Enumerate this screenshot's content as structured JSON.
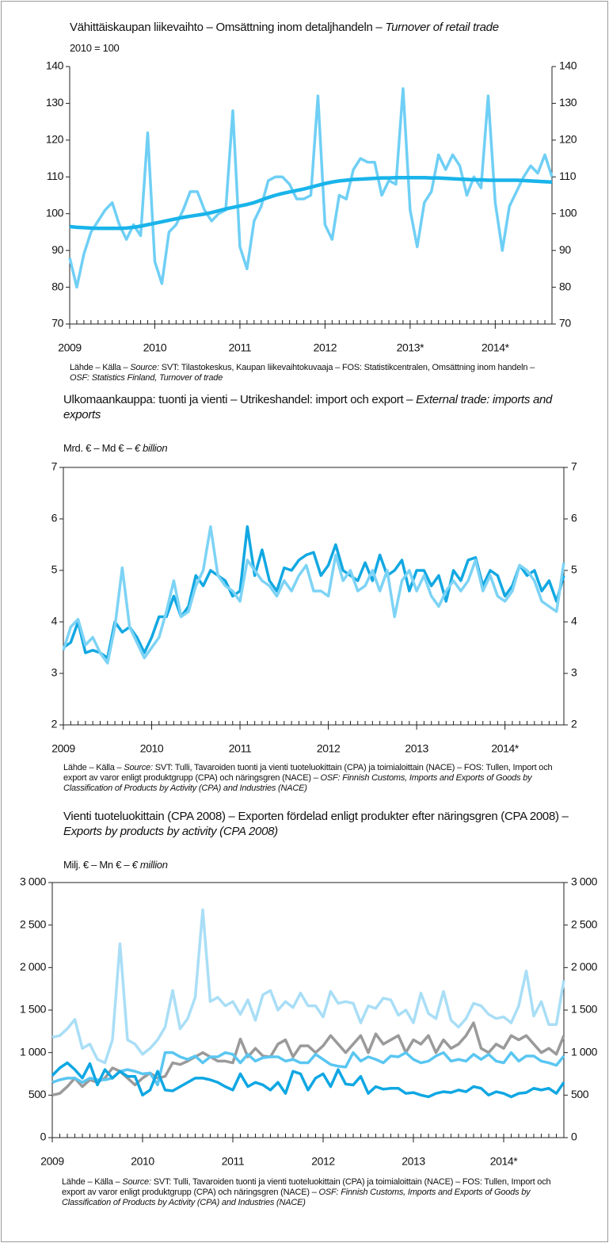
{
  "chart_data": [
    {
      "type": "line",
      "title": "Vähittäiskaupan liikevaihto – Omsättning inom detaljhandeln –",
      "title_en": "Turnover of retail trade",
      "unit": "2010 = 100",
      "source": {
        "prefix": "Lähde – Källa –",
        "label": "Source:",
        "text": "SVT: Tilastokeskus, Kaupan liikevaihtokuvaaja – FOS: Statistikcentralen, Omsättning inom handeln –",
        "osf": "OSF: Statistics Finland, Turnover of trade"
      },
      "categories": [
        "2009",
        null,
        null,
        null,
        null,
        null,
        null,
        null,
        null,
        null,
        null,
        null,
        "2010",
        null,
        null,
        null,
        null,
        null,
        null,
        null,
        null,
        null,
        null,
        null,
        "2011",
        null,
        null,
        null,
        null,
        null,
        null,
        null,
        null,
        null,
        null,
        null,
        "2012",
        null,
        null,
        null,
        null,
        null,
        null,
        null,
        null,
        null,
        null,
        null,
        "2013*",
        null,
        null,
        null,
        null,
        null,
        null,
        null,
        null,
        null,
        null,
        null,
        "2014*",
        null,
        null,
        null,
        null,
        null,
        null,
        null,
        null
      ],
      "series": [
        {
          "color": "#6fcff5",
          "width": 3.5,
          "values": [
            88,
            80,
            89,
            95,
            98,
            101,
            103,
            97,
            93,
            97,
            94,
            122,
            87,
            81,
            95,
            97,
            101,
            106,
            106,
            101,
            98,
            100,
            101,
            128,
            91,
            85,
            98,
            102,
            109,
            110,
            110,
            108,
            104,
            104,
            105,
            132,
            97,
            93,
            105,
            104,
            112,
            115,
            114,
            114,
            105,
            109,
            108,
            134,
            101,
            91,
            103,
            106,
            116,
            112,
            116,
            113,
            105,
            110,
            107,
            132,
            103,
            90,
            102,
            106,
            110,
            113,
            111,
            116,
            110
          ]
        },
        {
          "color": "#19b4ea",
          "width": 4.5,
          "values": [
            96.5,
            96.3,
            96.2,
            96.1,
            96.0,
            96.0,
            96.0,
            96.0,
            96.1,
            96.3,
            96.6,
            97.0,
            97.4,
            97.8,
            98.2,
            98.6,
            99.0,
            99.3,
            99.6,
            99.9,
            100.3,
            100.8,
            101.3,
            101.7,
            102.1,
            102.5,
            103.0,
            103.7,
            104.4,
            105.0,
            105.5,
            105.9,
            106.3,
            106.7,
            107.2,
            107.7,
            108.2,
            108.6,
            108.9,
            109.1,
            109.3,
            109.4,
            109.5,
            109.6,
            109.7,
            109.7,
            109.8,
            109.8,
            109.8,
            109.8,
            109.8,
            109.7,
            109.7,
            109.6,
            109.5,
            109.4,
            109.3,
            109.2,
            109.2,
            109.1,
            109.1,
            109.1,
            109.1,
            109.1,
            109.0,
            108.9,
            108.8,
            108.7,
            108.6
          ]
        }
      ],
      "ylim": [
        70,
        140
      ],
      "yticks": [
        70,
        80,
        90,
        100,
        110,
        120,
        130,
        140
      ]
    },
    {
      "type": "line",
      "title": "Ulkomaankauppa: tuonti ja vienti – Utrikeshandel: import och export –",
      "title_en": "External trade: imports and exports",
      "unit": "Mrd. € – Md € –",
      "unit_en": "€ billion",
      "source": {
        "prefix": "Lähde – Källa –",
        "label": "Source:",
        "text": "SVT: Tulli, Tavaroiden tuonti ja vienti tuoteluokittain (CPA) ja toimialoittain (NACE) – FOS: Tullen, Import och export av varor enligt produktgrupp (CPA) och näringsgren (NACE) –",
        "osf": "OSF: Finnish Customs, Imports and Exports of Goods by Classification of Products by Activity (CPA) and Industries (NACE)"
      },
      "categories": [
        "2009",
        null,
        null,
        null,
        null,
        null,
        null,
        null,
        null,
        null,
        null,
        null,
        "2010",
        null,
        null,
        null,
        null,
        null,
        null,
        null,
        null,
        null,
        null,
        null,
        "2011",
        null,
        null,
        null,
        null,
        null,
        null,
        null,
        null,
        null,
        null,
        null,
        "2012",
        null,
        null,
        null,
        null,
        null,
        null,
        null,
        null,
        null,
        null,
        null,
        "2013",
        null,
        null,
        null,
        null,
        null,
        null,
        null,
        null,
        null,
        null,
        null,
        "2014*",
        null,
        null,
        null,
        null,
        null,
        null,
        null,
        null
      ],
      "series": [
        {
          "color": "#12a8e2",
          "width": 3.5,
          "values": [
            3.5,
            3.6,
            4.0,
            3.4,
            3.45,
            3.4,
            3.3,
            4.0,
            3.8,
            3.9,
            3.7,
            3.4,
            3.7,
            4.1,
            4.1,
            4.5,
            4.1,
            4.3,
            4.9,
            4.7,
            5.0,
            4.9,
            4.8,
            4.5,
            4.6,
            5.85,
            4.9,
            5.4,
            4.8,
            4.6,
            5.05,
            5.0,
            5.2,
            5.3,
            5.35,
            4.9,
            5.1,
            5.5,
            5.0,
            4.9,
            4.8,
            5.15,
            4.8,
            5.3,
            4.9,
            5.0,
            5.2,
            4.6,
            5.0,
            5.0,
            4.7,
            4.9,
            4.4,
            5.0,
            4.8,
            5.2,
            5.25,
            4.7,
            5.0,
            4.9,
            4.5,
            4.7,
            5.1,
            4.9,
            5.0,
            4.6,
            4.8,
            4.4,
            4.9
          ]
        },
        {
          "color": "#7dd3f5",
          "width": 3.5,
          "values": [
            3.45,
            3.9,
            4.05,
            3.55,
            3.7,
            3.4,
            3.2,
            3.9,
            5.05,
            3.9,
            3.6,
            3.3,
            3.5,
            3.7,
            4.2,
            4.8,
            4.1,
            4.2,
            4.7,
            5.0,
            5.85,
            4.9,
            4.7,
            4.6,
            4.4,
            5.2,
            5.0,
            4.8,
            4.7,
            4.5,
            4.8,
            4.6,
            4.9,
            5.1,
            4.6,
            4.6,
            4.5,
            5.3,
            4.8,
            5.0,
            4.6,
            4.7,
            5.0,
            4.6,
            5.0,
            4.1,
            4.8,
            5.0,
            4.6,
            4.9,
            4.5,
            4.3,
            4.6,
            4.8,
            4.6,
            4.8,
            5.2,
            4.6,
            4.9,
            4.5,
            4.4,
            4.6,
            5.1,
            5.0,
            4.8,
            4.4,
            4.3,
            4.2,
            5.15
          ]
        }
      ],
      "ylim": [
        2,
        7
      ],
      "yticks": [
        2,
        3,
        4,
        5,
        6,
        7
      ]
    },
    {
      "type": "line",
      "title": "Vienti tuoteluokittain (CPA 2008) – Exporten fördelad enligt produkter efter näringsgren (CPA 2008) –",
      "title_en": "Exports by products by activity (CPA 2008)",
      "unit": "Milj. € – Mn € –",
      "unit_en": "€ million",
      "source": {
        "prefix": "Lähde – Källa –",
        "label": "Source:",
        "text": "SVT: Tulli, Tavaroiden tuonti ja vienti tuoteluokittain (CPA) ja toimialoittain (NACE) – FOS: Tullen, Import och export av varor enligt produktgrupp (CPA) och näringsgren (NACE) –",
        "osf": "OSF: Finnish Customs, Imports and Exports of Goods by Classification of Products by Activity (CPA) and Industries (NACE)"
      },
      "categories": [
        "2009",
        null,
        null,
        null,
        null,
        null,
        null,
        null,
        null,
        null,
        null,
        null,
        "2010",
        null,
        null,
        null,
        null,
        null,
        null,
        null,
        null,
        null,
        null,
        null,
        "2011",
        null,
        null,
        null,
        null,
        null,
        null,
        null,
        null,
        null,
        null,
        null,
        "2012",
        null,
        null,
        null,
        null,
        null,
        null,
        null,
        null,
        null,
        null,
        null,
        "2013",
        null,
        null,
        null,
        null,
        null,
        null,
        null,
        null,
        null,
        null,
        null,
        "2014*",
        null,
        null,
        null,
        null,
        null,
        null,
        null,
        null
      ],
      "series": [
        {
          "color": "#a9def6",
          "width": 3.5,
          "values": [
            1180,
            1200,
            1280,
            1390,
            1050,
            1100,
            920,
            880,
            1150,
            2280,
            1150,
            1100,
            980,
            1050,
            1150,
            1300,
            1730,
            1280,
            1400,
            1650,
            2680,
            1600,
            1650,
            1550,
            1600,
            1450,
            1620,
            1380,
            1680,
            1730,
            1500,
            1600,
            1530,
            1700,
            1550,
            1550,
            1420,
            1720,
            1580,
            1600,
            1580,
            1350,
            1550,
            1520,
            1640,
            1620,
            1440,
            1500,
            1350,
            1700,
            1460,
            1400,
            1720,
            1380,
            1300,
            1400,
            1580,
            1550,
            1450,
            1400,
            1420,
            1350,
            1550,
            1960,
            1430,
            1600,
            1330,
            1330,
            1850
          ]
        },
        {
          "color": "#9a9a9a",
          "width": 3.5,
          "values": [
            500,
            520,
            600,
            700,
            600,
            680,
            650,
            700,
            820,
            780,
            700,
            620,
            700,
            760,
            700,
            720,
            880,
            860,
            900,
            950,
            1000,
            950,
            900,
            900,
            880,
            1160,
            950,
            1050,
            960,
            950,
            1100,
            1150,
            950,
            1080,
            1080,
            1000,
            1080,
            1200,
            1100,
            1000,
            1100,
            1200,
            1000,
            1220,
            1100,
            1150,
            1200,
            1000,
            1150,
            1100,
            1200,
            1000,
            1150,
            1050,
            1100,
            1200,
            1350,
            1050,
            1000,
            1100,
            1050,
            1200,
            1150,
            1200,
            1100,
            1000,
            1050,
            980,
            1200
          ]
        },
        {
          "color": "#5ac6f1",
          "width": 3.5,
          "values": [
            650,
            680,
            700,
            700,
            650,
            700,
            680,
            680,
            700,
            780,
            800,
            780,
            750,
            760,
            620,
            1000,
            1000,
            950,
            920,
            960,
            880,
            950,
            950,
            1000,
            980,
            880,
            980,
            900,
            940,
            950,
            950,
            900,
            920,
            880,
            880,
            980,
            920,
            860,
            840,
            830,
            1000,
            900,
            950,
            920,
            880,
            960,
            950,
            1000,
            920,
            880,
            900,
            960,
            1000,
            900,
            920,
            900,
            980,
            920,
            980,
            900,
            880,
            1000,
            900,
            960,
            960,
            900,
            880,
            850,
            960
          ]
        },
        {
          "color": "#0fa7e3",
          "width": 3.5,
          "values": [
            730,
            820,
            880,
            800,
            700,
            870,
            620,
            800,
            700,
            780,
            720,
            720,
            500,
            560,
            780,
            560,
            550,
            600,
            650,
            700,
            700,
            680,
            650,
            600,
            560,
            750,
            600,
            650,
            620,
            560,
            650,
            520,
            780,
            750,
            560,
            700,
            750,
            600,
            800,
            630,
            620,
            720,
            520,
            600,
            570,
            580,
            580,
            520,
            530,
            500,
            480,
            520,
            540,
            530,
            560,
            540,
            600,
            580,
            500,
            540,
            520,
            480,
            520,
            530,
            580,
            560,
            580,
            520,
            650
          ]
        }
      ],
      "ylim": [
        0,
        3000
      ],
      "yticks": [
        0,
        500,
        {
          "value": 1000,
          "label": "1 000"
        },
        {
          "value": 1500,
          "label": "1 500"
        },
        {
          "value": 2000,
          "label": "2 000"
        },
        {
          "value": 2500,
          "label": "2 500"
        },
        {
          "value": 3000,
          "label": "3 000"
        }
      ]
    }
  ]
}
